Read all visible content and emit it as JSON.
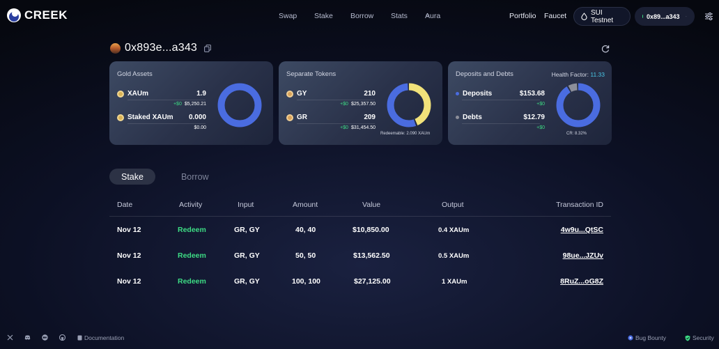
{
  "header": {
    "brand": "CREEK",
    "nav": [
      "Swap",
      "Stake",
      "Borrow",
      "Stats",
      "Aura"
    ],
    "portfolio": "Portfolio",
    "faucet": "Faucet",
    "network": "SUI Testnet",
    "wallet": "0x89...a343"
  },
  "account": {
    "address": "0x893e...a343"
  },
  "cards": {
    "gold": {
      "title": "Gold Assets",
      "rows": [
        {
          "name": "XAUm",
          "value": "1.9",
          "delta": "+$0",
          "usd": "$5,250.21"
        },
        {
          "name": "Staked XAUm",
          "value": "0.000",
          "usd": "$0.00"
        }
      ],
      "donut": {
        "segments": [
          {
            "fraction": 1.0,
            "color": "#4a6ce0"
          }
        ]
      }
    },
    "tokens": {
      "title": "Separate Tokens",
      "rows": [
        {
          "name": "GY",
          "value": "210",
          "delta": "+$0",
          "usd": "$25,357.50"
        },
        {
          "name": "GR",
          "value": "209",
          "delta": "+$0",
          "usd": "$31,454.50"
        }
      ],
      "redeemable": "Redeemable: 2.090 XAUm",
      "donut": {
        "segments": [
          {
            "fraction": 0.447,
            "color": "#f1e27a"
          },
          {
            "fraction": 0.553,
            "color": "#4a6ce0"
          }
        ]
      }
    },
    "deposits": {
      "title": "Deposits and Debts",
      "health_label": "Health Factor:",
      "health_value": "11.33",
      "rows": [
        {
          "name": "Deposits",
          "value": "$153.68",
          "delta": "+$0",
          "dot_color": "#4a6ce0"
        },
        {
          "name": "Debts",
          "value": "$12.79",
          "delta": "+$0",
          "dot_color": "#8c8f9a"
        }
      ],
      "cr": "CR: 8.32%",
      "donut": {
        "segments": [
          {
            "fraction": 0.923,
            "color": "#4a6ce0"
          },
          {
            "fraction": 0.077,
            "color": "#8c8f9a"
          }
        ]
      }
    }
  },
  "tabs": [
    "Stake",
    "Borrow"
  ],
  "table": {
    "columns": [
      "Date",
      "Activity",
      "Input",
      "Amount",
      "Value",
      "Output",
      "Transaction ID"
    ],
    "rows": [
      {
        "date": "Nov 12",
        "activity": "Redeem",
        "input": "GR, GY",
        "amount": "40, 40",
        "value": "$10,850.00",
        "output": "0.4 XAUm",
        "txid": "4w9u...QtSC"
      },
      {
        "date": "Nov 12",
        "activity": "Redeem",
        "input": "GR, GY",
        "amount": "50, 50",
        "value": "$13,562.50",
        "output": "0.5 XAUm",
        "txid": "98ue...JZUv"
      },
      {
        "date": "Nov 12",
        "activity": "Redeem",
        "input": "GR, GY",
        "amount": "100, 100",
        "value": "$27,125.00",
        "output": "1 XAUm",
        "txid": "8RuZ...oG8Z"
      }
    ]
  },
  "footer": {
    "documentation": "Documentation",
    "bug_bounty": "Bug Bounty",
    "security": "Security",
    "icons": [
      "x-icon",
      "discord-icon",
      "medium-icon",
      "github-icon"
    ]
  },
  "colors": {
    "accent_blue": "#4a6ce0",
    "accent_green": "#3ddc84",
    "accent_yellow": "#f1e27a",
    "health_cyan": "#49c6e5"
  }
}
